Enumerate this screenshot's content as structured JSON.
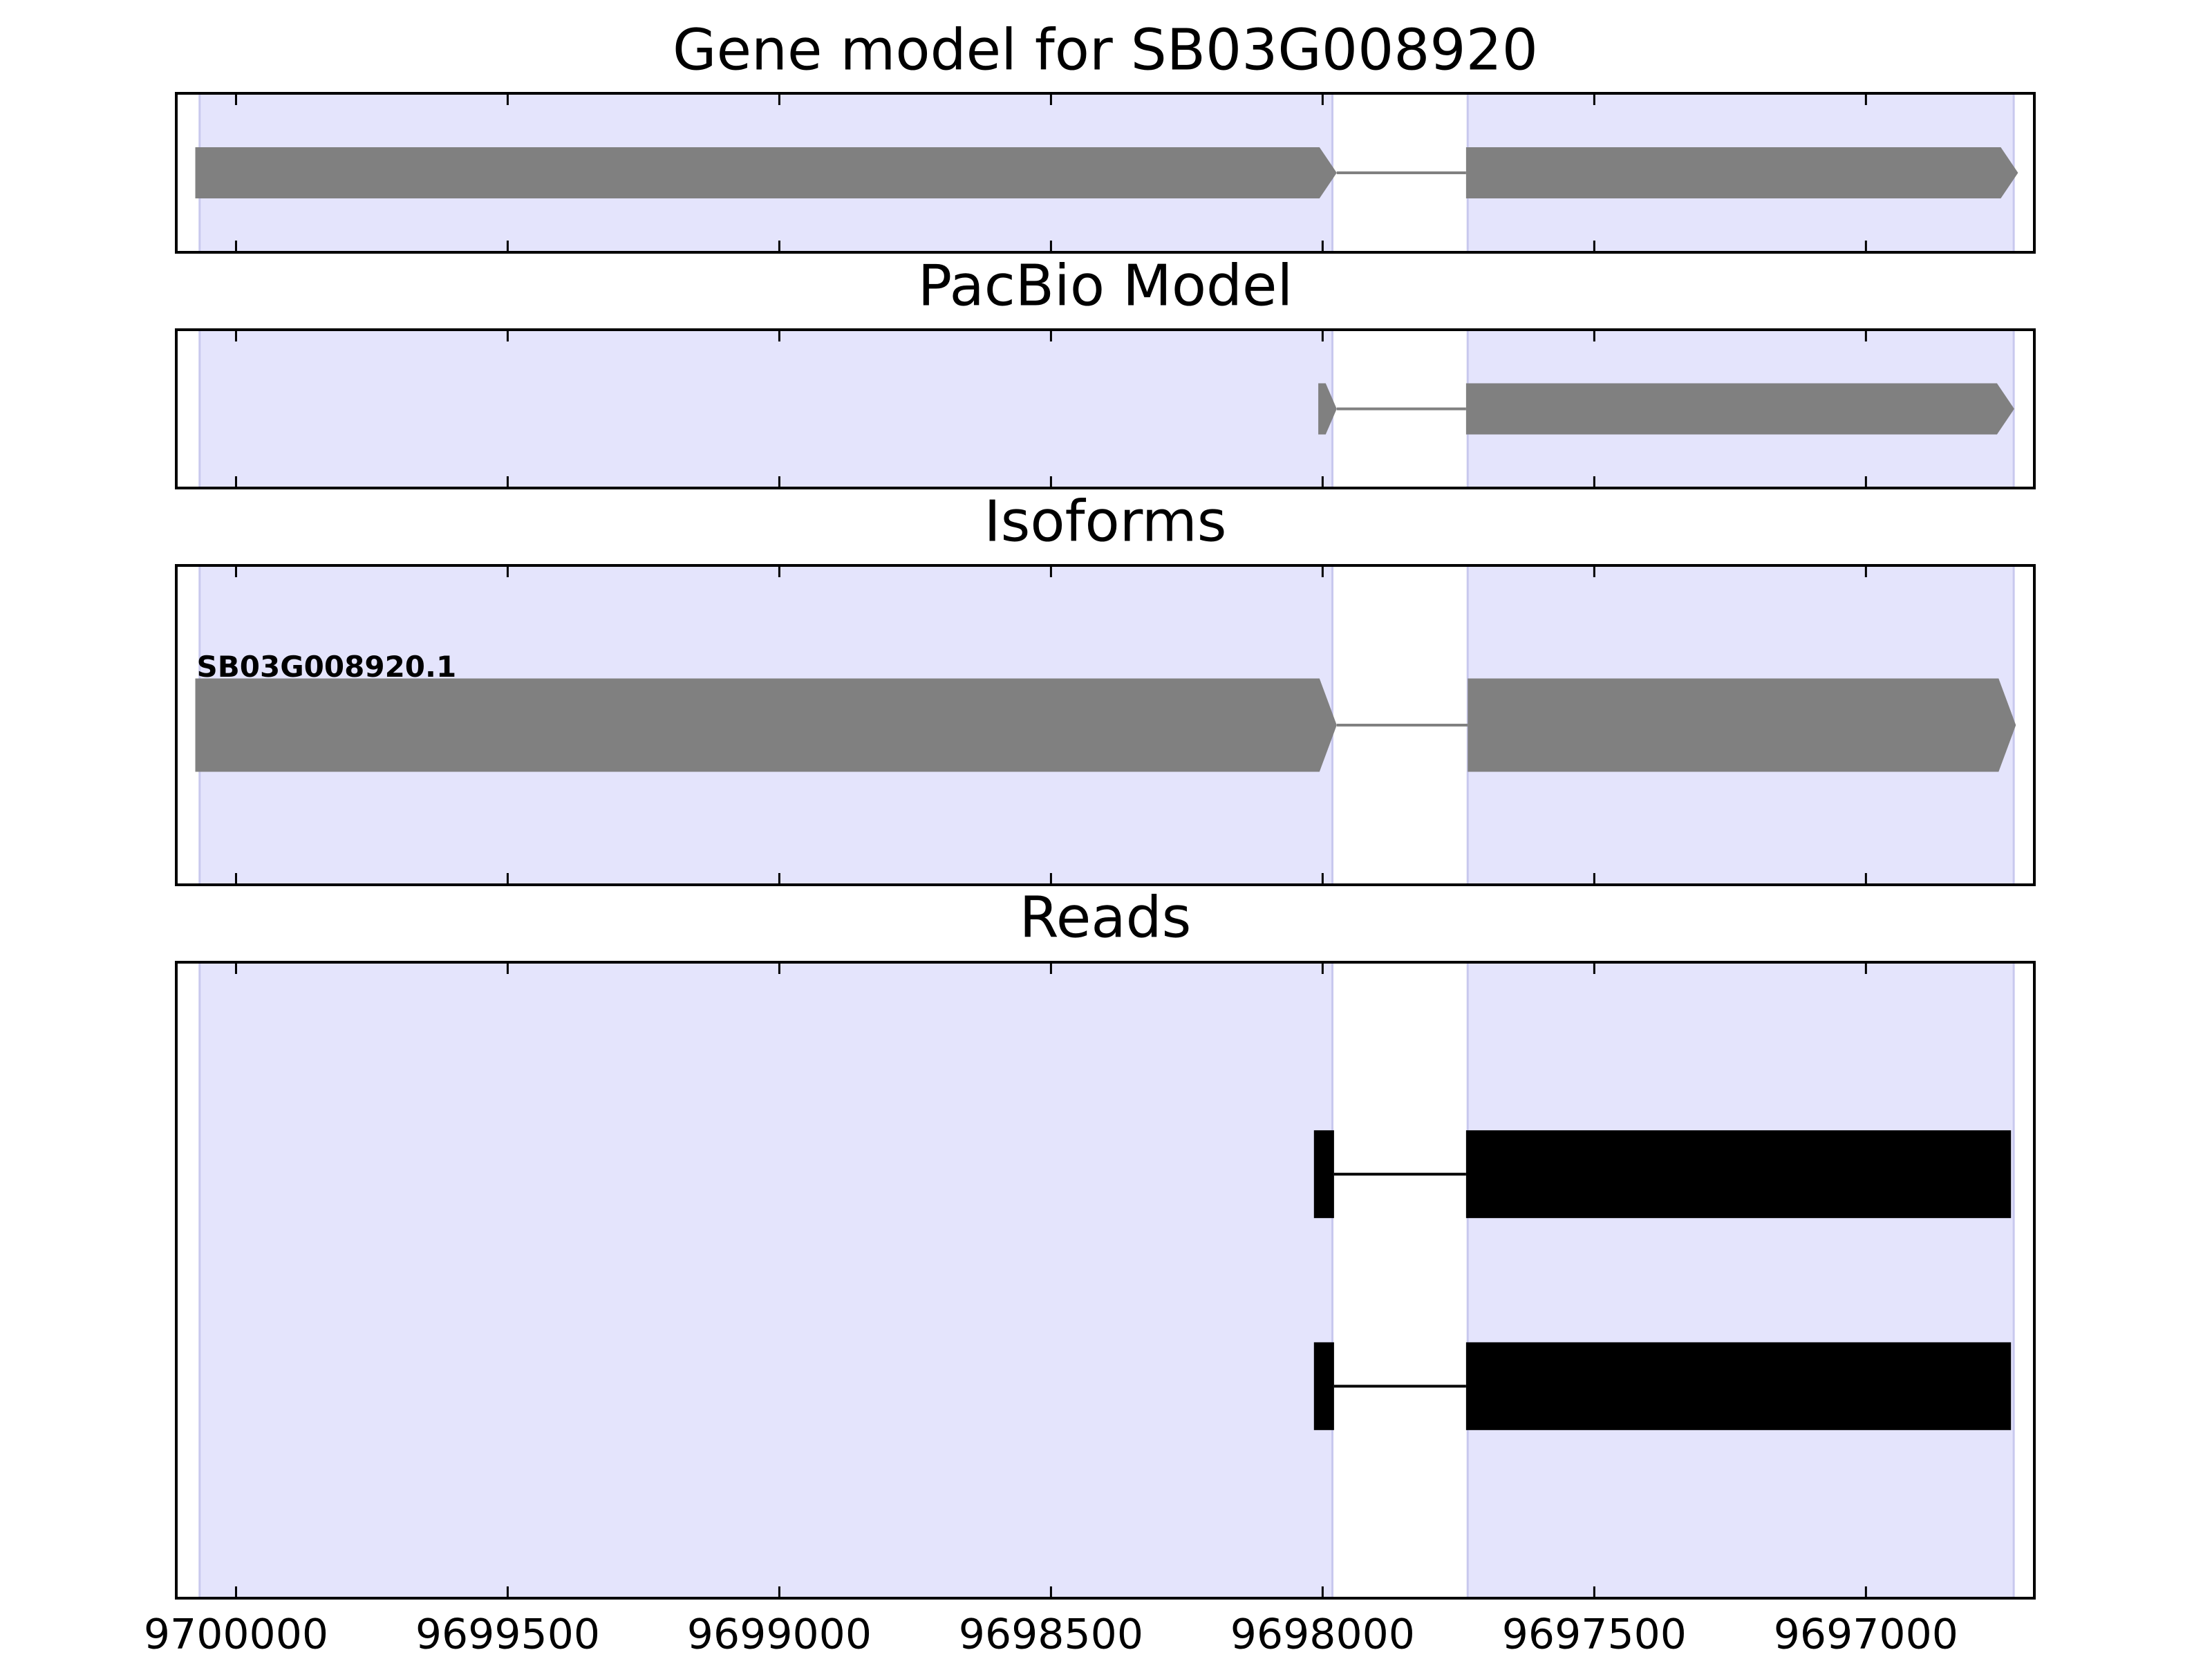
{
  "chart_data": [
    {
      "type": "gene-track",
      "title": "Gene model for SB03G008920",
      "xlim": [
        9700110,
        9696690
      ],
      "xticks": [
        9700000,
        9699500,
        9699000,
        9698500,
        9698000,
        9697500,
        9697000
      ],
      "region_color": "#e4e4fc",
      "regions": [
        [
          9700067,
          9697982
        ],
        [
          9697733,
          9696728
        ]
      ],
      "arrow": true,
      "series": [
        {
          "color": "#808080",
          "exons": [
            [
              9700075,
              9697974
            ],
            [
              9697736,
              9696720
            ]
          ]
        }
      ]
    },
    {
      "type": "gene-track",
      "title": "PacBio Model",
      "xlim": [
        9700110,
        9696690
      ],
      "xticks": [
        9700000,
        9699500,
        9699000,
        9698500,
        9698000,
        9697500,
        9697000
      ],
      "region_color": "#e4e4fc",
      "regions": [
        [
          9700067,
          9697982
        ],
        [
          9697733,
          9696728
        ]
      ],
      "arrow": true,
      "series": [
        {
          "color": "#808080",
          "exons": [
            [
              9698008,
              9697974
            ],
            [
              9697736,
              9696727
            ]
          ]
        }
      ]
    },
    {
      "type": "gene-track",
      "title": "Isoforms",
      "xlim": [
        9700110,
        9696690
      ],
      "xticks": [
        9700000,
        9699500,
        9699000,
        9698500,
        9698000,
        9697500,
        9697000
      ],
      "region_color": "#e4e4fc",
      "regions": [
        [
          9700067,
          9697982
        ],
        [
          9697733,
          9696728
        ]
      ],
      "arrow": true,
      "series": [
        {
          "name": "SB03G008920.1",
          "color": "#808080",
          "exons": [
            [
              9700075,
              9697974
            ],
            [
              9697733,
              9696724
            ]
          ]
        }
      ]
    },
    {
      "type": "gene-track",
      "title": "Reads",
      "xlim": [
        9700110,
        9696690
      ],
      "xticks": [
        9700000,
        9699500,
        9699000,
        9698500,
        9698000,
        9697500,
        9697000
      ],
      "tick_labels": true,
      "region_color": "#e4e4fc",
      "regions": [
        [
          9700067,
          9697982
        ],
        [
          9697733,
          9696728
        ]
      ],
      "arrow": false,
      "series": [
        {
          "color": "#000000",
          "exons": [
            [
              9698016,
              9697979
            ],
            [
              9697736,
              9696733
            ]
          ]
        },
        {
          "color": "#000000",
          "exons": [
            [
              9698016,
              9697979
            ],
            [
              9697736,
              9696733
            ]
          ]
        }
      ]
    }
  ]
}
